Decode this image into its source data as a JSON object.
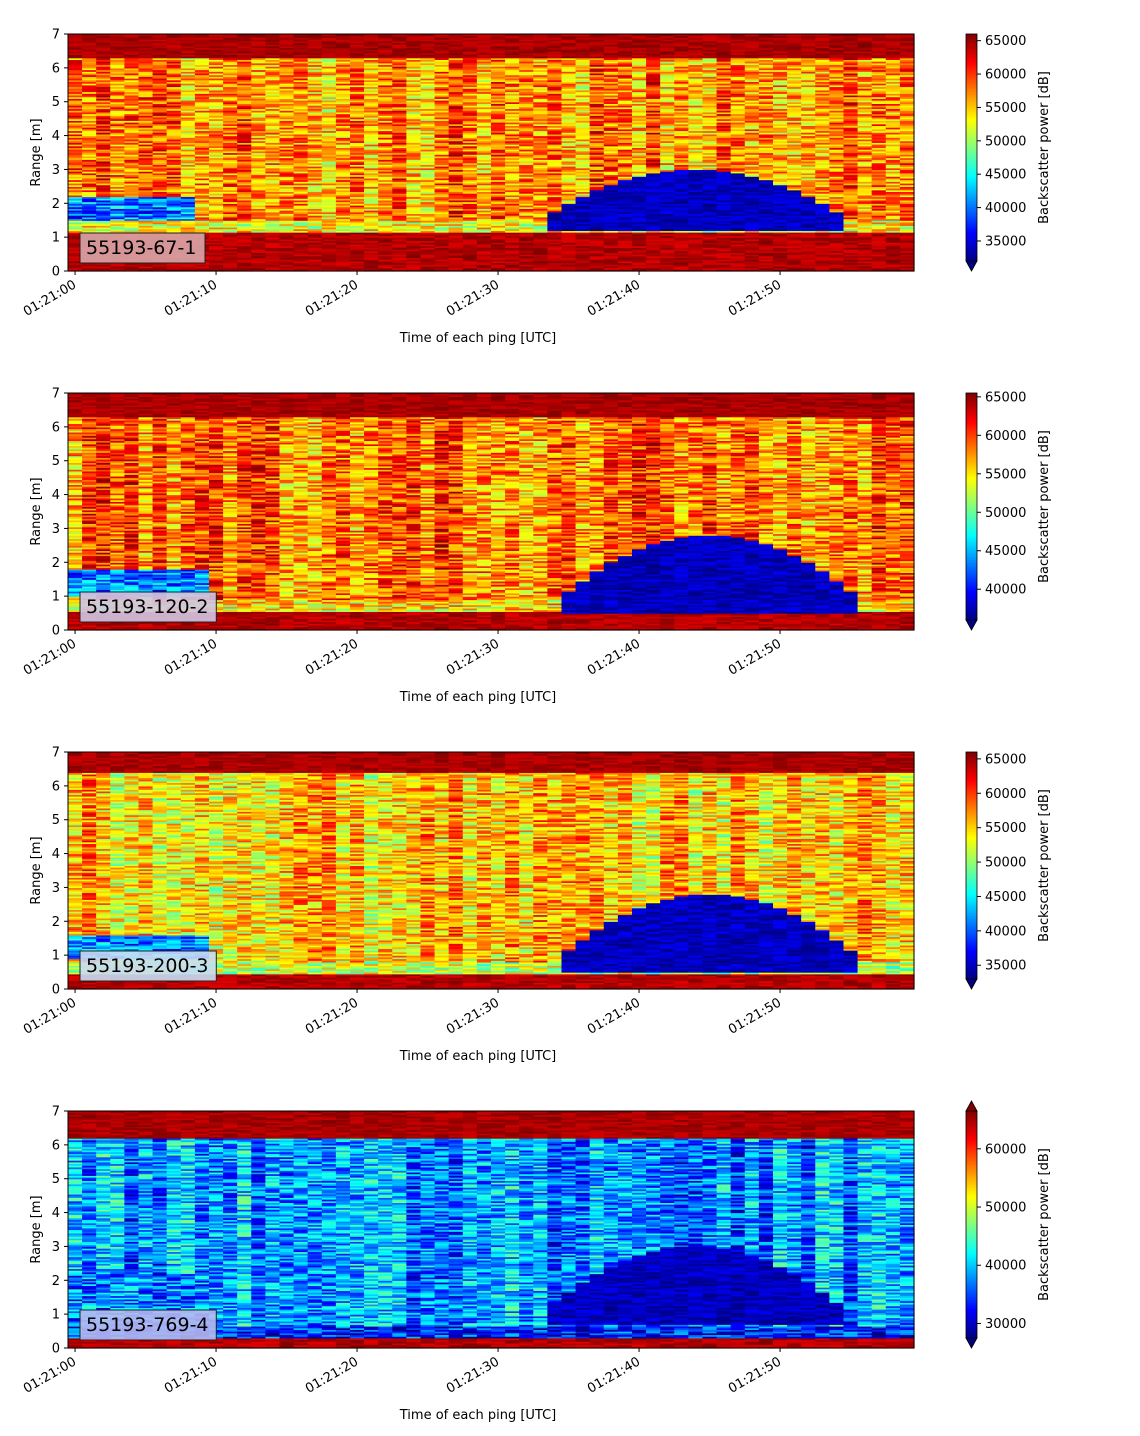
{
  "chart_data": [
    {
      "type": "heatmap",
      "label": "55193-67-1",
      "xlabel": "Time of each ping [UTC]",
      "ylabel": "Range [m]",
      "colorbar_label": "Backscatter power [dB]",
      "x_ticks": [
        "01:21:00",
        "01:21:10",
        "01:21:20",
        "01:21:30",
        "01:21:40",
        "01:21:50"
      ],
      "y_ticks": [
        0,
        1,
        2,
        3,
        4,
        5,
        6,
        7
      ],
      "ylim": [
        0,
        7
      ],
      "xlim_seconds": [
        -0.5,
        59.5
      ],
      "clim": [
        32000,
        66000
      ],
      "colorbar_ticks": [
        35000,
        40000,
        45000,
        50000,
        55000,
        60000,
        65000
      ],
      "colorbar_extend": "min",
      "colormap": "jet",
      "label_box_color": "#d9a6a9",
      "features": {
        "surface_band_m": [
          6.3,
          7.0
        ],
        "near_band_m": [
          0.0,
          1.15
        ],
        "low_signal_blob": {
          "t_center_s": 44,
          "range_peak_m": 3.0,
          "range_base_m": 1.5
        },
        "early_low_band": {
          "t_end_s": 9,
          "range_m": [
            1.5,
            2.2
          ]
        },
        "background_dB": 57000
      }
    },
    {
      "type": "heatmap",
      "label": "55193-120-2",
      "xlabel": "Time of each ping [UTC]",
      "ylabel": "Range [m]",
      "colorbar_label": "Backscatter power [dB]",
      "x_ticks": [
        "01:21:00",
        "01:21:10",
        "01:21:20",
        "01:21:30",
        "01:21:40",
        "01:21:50"
      ],
      "y_ticks": [
        0,
        1,
        2,
        3,
        4,
        5,
        6,
        7
      ],
      "ylim": [
        0,
        7
      ],
      "xlim_seconds": [
        -0.5,
        59.5
      ],
      "clim": [
        36000,
        65500
      ],
      "colorbar_ticks": [
        40000,
        45000,
        50000,
        55000,
        60000,
        65000
      ],
      "colorbar_extend": "min",
      "colormap": "jet",
      "label_box_color": "#d2c5e3",
      "features": {
        "surface_band_m": [
          6.3,
          7.0
        ],
        "near_band_m": [
          0.0,
          0.55
        ],
        "low_signal_blob": {
          "t_center_s": 45,
          "range_peak_m": 2.8,
          "range_base_m": 0.8
        },
        "early_low_band": {
          "t_end_s": 10,
          "range_m": [
            1.0,
            1.8
          ]
        },
        "background_dB": 58500
      }
    },
    {
      "type": "heatmap",
      "label": "55193-200-3",
      "xlabel": "Time of each ping [UTC]",
      "ylabel": "Range [m]",
      "colorbar_label": "Backscatter power [dB]",
      "x_ticks": [
        "01:21:00",
        "01:21:10",
        "01:21:20",
        "01:21:30",
        "01:21:40",
        "01:21:50"
      ],
      "y_ticks": [
        0,
        1,
        2,
        3,
        4,
        5,
        6,
        7
      ],
      "ylim": [
        0,
        7
      ],
      "xlim_seconds": [
        -0.5,
        59.5
      ],
      "clim": [
        33000,
        66000
      ],
      "colorbar_ticks": [
        35000,
        40000,
        45000,
        50000,
        55000,
        60000,
        65000
      ],
      "colorbar_extend": "min",
      "colormap": "jet",
      "label_box_color": "#c8ddf4",
      "features": {
        "surface_band_m": [
          6.4,
          7.0
        ],
        "near_band_m": [
          0.0,
          0.45
        ],
        "low_signal_blob": {
          "t_center_s": 45,
          "range_peak_m": 2.8,
          "range_base_m": 0.8
        },
        "early_low_band": {
          "t_end_s": 10,
          "range_m": [
            0.9,
            1.6
          ]
        },
        "background_dB": 55500
      }
    },
    {
      "type": "heatmap",
      "label": "55193-769-4",
      "xlabel": "Time of each ping [UTC]",
      "ylabel": "Range [m]",
      "colorbar_label": "Backscatter power [dB]",
      "x_ticks": [
        "01:21:00",
        "01:21:10",
        "01:21:20",
        "01:21:30",
        "01:21:40",
        "01:21:50"
      ],
      "y_ticks": [
        0,
        1,
        2,
        3,
        4,
        5,
        6,
        7
      ],
      "ylim": [
        0,
        7
      ],
      "xlim_seconds": [
        -0.5,
        59.5
      ],
      "clim": [
        27500,
        66500
      ],
      "colorbar_ticks": [
        30000,
        40000,
        50000,
        60000
      ],
      "colorbar_extend": "both",
      "colormap": "jet",
      "label_box_color": "#b6b9ef",
      "features": {
        "surface_band_m": [
          6.2,
          6.9
        ],
        "near_band_m": [
          0.0,
          0.3
        ],
        "low_signal_blob": {
          "t_center_s": 44,
          "range_peak_m": 3.0,
          "range_base_m": 1.0
        },
        "early_low_band": {
          "t_end_s": 10,
          "range_m": [
            0.8,
            2.2
          ]
        },
        "background_dB": 38000
      }
    }
  ]
}
